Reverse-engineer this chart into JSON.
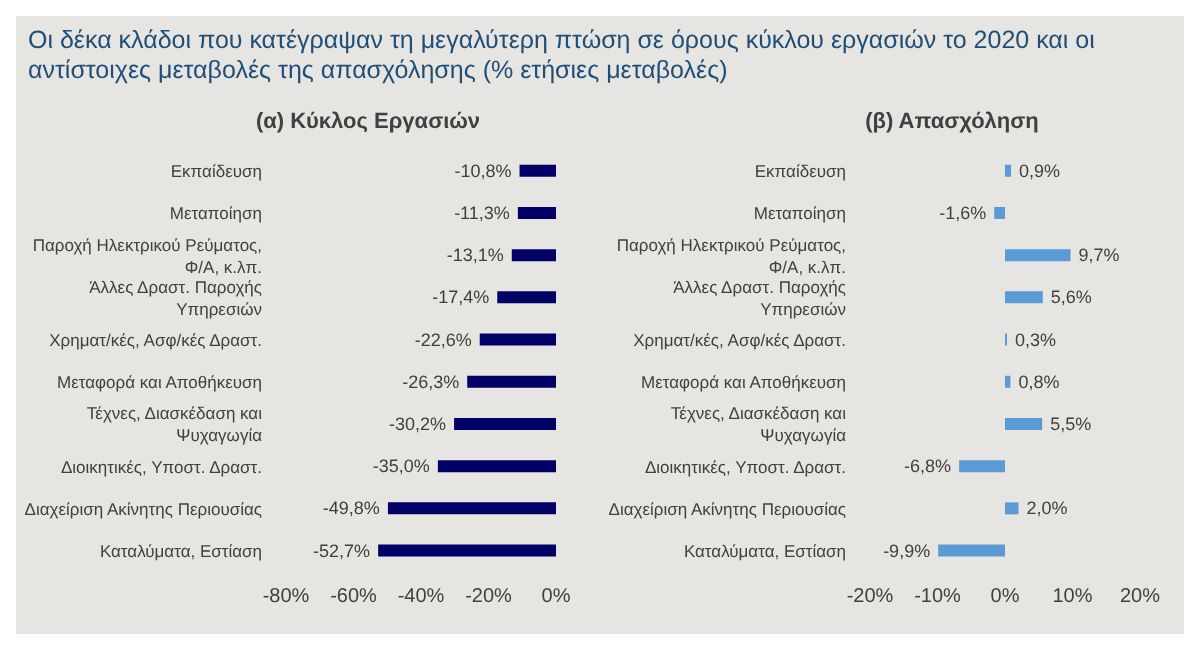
{
  "chart_data": [
    {
      "type": "bar",
      "orientation": "horizontal",
      "title": "Οι δέκα κλάδοι που κατέγραψαν τη μεγαλύτερη πτώση σε όρους κύκλου εργασιών το 2020  και οι αντίστοιχες μεταβολές της απασχόλησης (% ετήσιες μεταβολές)",
      "subtitle": "(α) Κύκλος Εργασιών",
      "categories": [
        "Εκπαίδευση",
        "Μεταποίηση",
        "Παροχή Ηλεκτρικού Ρεύματος, Φ/Α, κ.λπ.",
        "Άλλες  Δραστ. Παροχής Υπηρεσιών",
        "Χρηματ/κές,  Ασφ/κές Δραστ.",
        "Μεταφορά  και Αποθήκευση",
        "Τέχνες, Διασκέδαση και Ψυχαγωγία",
        "Διοικητικές, Υποστ. Δραστ.",
        "Διαχείριση Ακίνητης Περιουσίας",
        "Καταλύματα,  Εστίαση"
      ],
      "values": [
        -10.8,
        -11.3,
        -13.1,
        -17.4,
        -22.6,
        -26.3,
        -30.2,
        -35.0,
        -49.8,
        -52.7
      ],
      "value_labels": [
        "-10,8%",
        "-11,3%",
        "-13,1%",
        "-17,4%",
        "-22,6%",
        "-26,3%",
        "-30,2%",
        "-35,0%",
        "-49,8%",
        "-52,7%"
      ],
      "color": "#000066",
      "xlim": [
        -80,
        0
      ],
      "xticks": [
        {
          "value": -80,
          "label": "-80%"
        },
        {
          "value": -60,
          "label": "-60%"
        },
        {
          "value": -40,
          "label": "-40%"
        },
        {
          "value": -20,
          "label": "-20%"
        },
        {
          "value": 0,
          "label": "0%"
        }
      ],
      "grid": false,
      "legend": false
    },
    {
      "type": "bar",
      "orientation": "horizontal",
      "subtitle": "(β) Απασχόληση",
      "categories": [
        "Εκπαίδευση",
        "Μεταποίηση",
        "Παροχή Ηλεκτρικού Ρεύματος, Φ/Α, κ.λπ.",
        "Άλλες  Δραστ. Παροχής Υπηρεσιών",
        "Χρηματ/κές,  Ασφ/κές Δραστ.",
        "Μεταφορά  και Αποθήκευση",
        "Τέχνες, Διασκέδαση και Ψυχαγωγία",
        "Διοικητικές, Υποστ. Δραστ.",
        "Διαχείριση Ακίνητης Περιουσίας",
        "Καταλύματα,  Εστίαση"
      ],
      "values": [
        0.9,
        -1.6,
        9.7,
        5.6,
        0.3,
        0.8,
        5.5,
        -6.8,
        2.0,
        -9.9
      ],
      "value_labels": [
        "0,9%",
        "-1,6%",
        "9,7%",
        "5,6%",
        "0,3%",
        "0,8%",
        "5,5%",
        "-6,8%",
        "2,0%",
        "-9,9%"
      ],
      "color": "#5b9bd5",
      "xlim": [
        -20,
        20
      ],
      "xticks": [
        {
          "value": -20,
          "label": "-20%"
        },
        {
          "value": -10,
          "label": "-10%"
        },
        {
          "value": 0,
          "label": "0%"
        },
        {
          "value": 10,
          "label": "10%"
        },
        {
          "value": 20,
          "label": "20%"
        }
      ],
      "grid": false,
      "legend": false
    }
  ]
}
